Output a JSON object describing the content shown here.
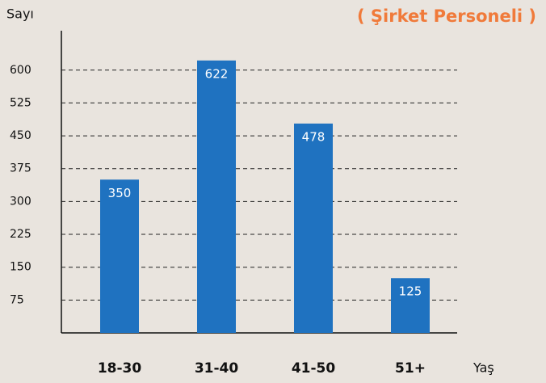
{
  "chart_data": {
    "type": "bar",
    "title": "( Şirket Personeli )",
    "y_label": "Sayı",
    "x_label": "Yaş",
    "categories": [
      "18-30",
      "31-40",
      "41-50",
      "51+"
    ],
    "values": [
      350,
      622,
      478,
      125
    ],
    "color": "#1f72c0",
    "ylim": [
      0,
      690
    ],
    "yticks": [
      75,
      150,
      225,
      300,
      375,
      450,
      525,
      600
    ],
    "grid": true
  }
}
